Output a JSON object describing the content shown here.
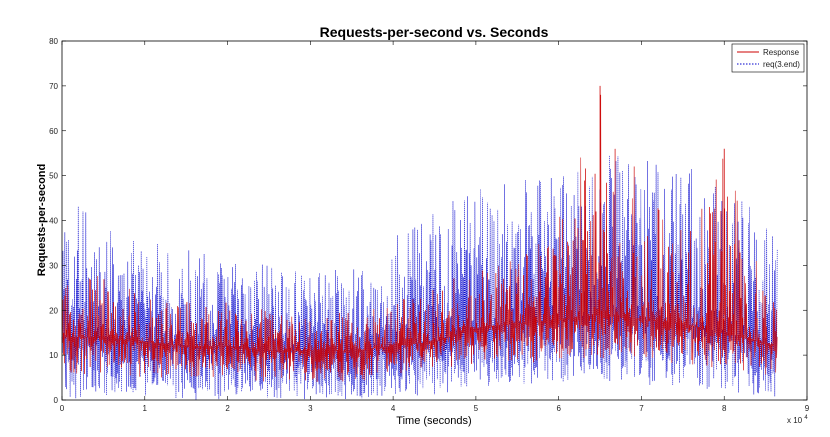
{
  "chart_data": {
    "type": "line",
    "title": "Requests-per-second vs. Seconds",
    "xlabel": "Time (seconds)",
    "ylabel": "Requests-per-second",
    "x_exponent_label": "x 10",
    "x_exponent_power": "4",
    "xlim": [
      0,
      90000
    ],
    "ylim": [
      0,
      80
    ],
    "x_ticks": [
      0,
      10000,
      20000,
      30000,
      40000,
      50000,
      60000,
      70000,
      80000,
      90000
    ],
    "x_tick_labels": [
      "0",
      "1",
      "2",
      "3",
      "4",
      "5",
      "6",
      "7",
      "8",
      "9"
    ],
    "y_ticks": [
      0,
      10,
      20,
      30,
      40,
      50,
      60,
      70,
      80
    ],
    "y_tick_labels": [
      "0",
      "10",
      "20",
      "30",
      "40",
      "50",
      "60",
      "70",
      "80"
    ],
    "grid": false,
    "legend_position": "top-right",
    "x_end": 86400,
    "series": [
      {
        "name": "Response",
        "color": "#cc0000",
        "style": "solid",
        "envelope": {
          "x": [
            0,
            5000,
            10000,
            15000,
            20000,
            25000,
            30000,
            35000,
            40000,
            45000,
            50000,
            55000,
            60000,
            65000,
            70000,
            75000,
            80000,
            86400
          ],
          "mean": [
            14,
            14,
            13,
            12,
            12,
            11,
            11,
            11,
            12,
            13,
            16,
            17,
            18,
            19,
            18,
            17,
            15,
            12
          ],
          "max": [
            26,
            28,
            24,
            22,
            22,
            20,
            19,
            20,
            22,
            26,
            30,
            32,
            40,
            70,
            52,
            44,
            56,
            20
          ],
          "min": [
            5,
            6,
            5,
            5,
            5,
            4,
            4,
            4,
            5,
            6,
            8,
            8,
            9,
            9,
            9,
            8,
            7,
            5
          ]
        }
      },
      {
        "name": "req(3.end)",
        "color": "#0000cc",
        "style": "dotted",
        "envelope": {
          "x": [
            0,
            5000,
            10000,
            15000,
            20000,
            25000,
            30000,
            35000,
            40000,
            45000,
            50000,
            55000,
            60000,
            65000,
            70000,
            75000,
            80000,
            86400
          ],
          "mean": [
            14,
            14,
            13,
            12,
            12,
            11,
            11,
            11,
            12,
            13,
            16,
            17,
            18,
            19,
            18,
            17,
            15,
            12
          ],
          "max": [
            47,
            38,
            36,
            34,
            32,
            30,
            28,
            30,
            36,
            44,
            48,
            50,
            52,
            55,
            54,
            52,
            50,
            36
          ],
          "min": [
            0,
            1,
            1,
            0,
            0,
            0,
            0,
            0,
            1,
            1,
            3,
            3,
            4,
            4,
            3,
            3,
            2,
            0
          ]
        }
      }
    ]
  }
}
